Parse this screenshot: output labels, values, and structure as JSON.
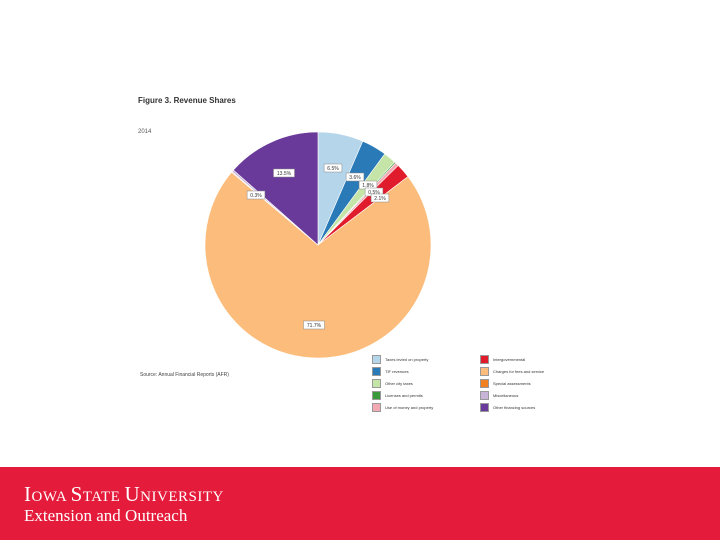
{
  "figure": {
    "title": "Figure 3. Revenue Shares",
    "year": "2014",
    "source": "Source: Annual Financial Reports (AFR)"
  },
  "chart_data": {
    "type": "pie",
    "title": "Figure 3. Revenue Shares",
    "slices": [
      {
        "name": "Taxes levied on property",
        "label": "6.5%",
        "value": 6.5,
        "color": "#b5d5ea"
      },
      {
        "name": "TIF revenues",
        "label": "3.6%",
        "value": 3.6,
        "color": "#2a7ab8"
      },
      {
        "name": "Other city taxes",
        "label": "1.8%",
        "value": 1.8,
        "color": "#c5e5a8"
      },
      {
        "name": "Licenses and permits",
        "label": "",
        "value": 0.2,
        "color": "#3a9a3a"
      },
      {
        "name": "Use of money and property",
        "label": "0.5%",
        "value": 0.5,
        "color": "#f3a9b4"
      },
      {
        "name": "Intergovernmental",
        "label": "2.1%",
        "value": 2.1,
        "color": "#e01b2c"
      },
      {
        "name": "Charges for fees and service",
        "label": "71.7%",
        "value": 71.7,
        "color": "#fcbd7c"
      },
      {
        "name": "Special assessments",
        "label": "",
        "value": 0.1,
        "color": "#f08020"
      },
      {
        "name": "Miscellaneous",
        "label": "0.3%",
        "value": 0.3,
        "color": "#c8b4d8"
      },
      {
        "name": "Other financing sources",
        "label": "13.5%",
        "value": 13.5,
        "color": "#6a3a9a"
      }
    ],
    "legend_left": [
      "Taxes levied on property",
      "TIF revenues",
      "Other city taxes",
      "Licenses and permits",
      "Use of money and property"
    ],
    "legend_right": [
      "Intergovernmental",
      "Charges for fees and service",
      "Special assessments",
      "Miscellaneous",
      "Other financing sources"
    ],
    "legend_placement": "bottom-right"
  },
  "footer": {
    "brand_color": "#e41b3b",
    "university": "Iowa State University",
    "university_display": [
      "I",
      "OWA ",
      "S",
      "TATE ",
      "U",
      "NIVERSITY"
    ],
    "subtitle": "Extension and Outreach"
  }
}
